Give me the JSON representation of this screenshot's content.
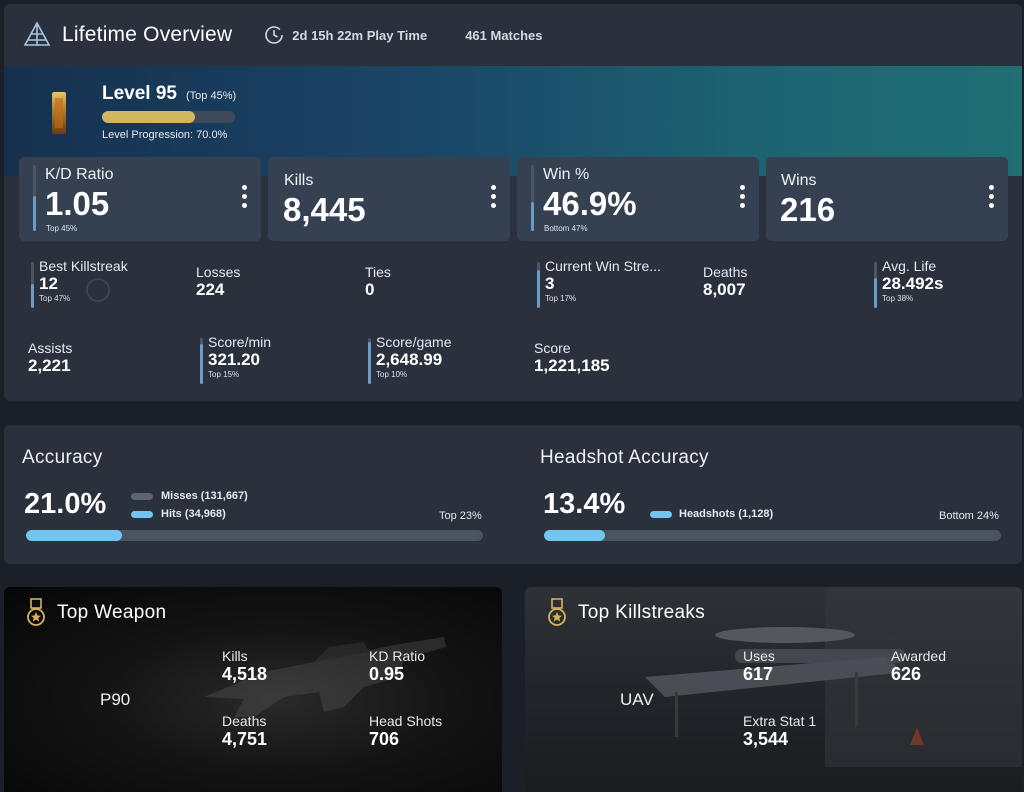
{
  "header": {
    "title": "Lifetime Overview",
    "play_time": "2d 15h 22m Play Time",
    "matches": "461 Matches"
  },
  "level": {
    "label": "Level 95",
    "top": "(Top 45%)",
    "progression_label": "Level Progression: 70.0%",
    "progression": 0.7
  },
  "big_cards": [
    {
      "label": "K/D Ratio",
      "value": "1.05",
      "sub": "Top 45%",
      "percentile": 0.55
    },
    {
      "label": "Kills",
      "value": "8,445",
      "sub": ""
    },
    {
      "label": "Win %",
      "value": "46.9%",
      "sub": "Bottom 47%",
      "percentile": 0.47
    },
    {
      "label": "Wins",
      "value": "216",
      "sub": ""
    }
  ],
  "stats": {
    "best_killstreak": {
      "label": "Best Killstreak",
      "value": "12",
      "sub": "Top 47%"
    },
    "losses": {
      "label": "Losses",
      "value": "224"
    },
    "ties": {
      "label": "Ties",
      "value": "0"
    },
    "current_win_streak": {
      "label": "Current Win Stre...",
      "value": "3",
      "sub": "Top 17%"
    },
    "deaths": {
      "label": "Deaths",
      "value": "8,007"
    },
    "avg_life": {
      "label": "Avg. Life",
      "value": "28.492s",
      "sub": "Top 38%"
    },
    "assists": {
      "label": "Assists",
      "value": "2,221"
    },
    "score_min": {
      "label": "Score/min",
      "value": "321.20",
      "sub": "Top 15%"
    },
    "score_game": {
      "label": "Score/game",
      "value": "2,648.99",
      "sub": "Top 10%"
    },
    "score": {
      "label": "Score",
      "value": "1,221,185"
    }
  },
  "accuracy": {
    "title": "Accuracy",
    "value": "21.0%",
    "fraction": 0.21,
    "legend_misses": "Misses (131,667)",
    "legend_hits": "Hits (34,968)",
    "rank": "Top 23%"
  },
  "headshot_accuracy": {
    "title": "Headshot Accuracy",
    "value": "13.4%",
    "fraction": 0.134,
    "legend_headshots": "Headshots (1,128)",
    "rank": "Bottom 24%"
  },
  "top_weapon": {
    "title": "Top Weapon",
    "name": "P90",
    "kills_label": "Kills",
    "kills": "4,518",
    "kd_label": "KD Ratio",
    "kd": "0.95",
    "deaths_label": "Deaths",
    "deaths": "4,751",
    "headshots_label": "Head Shots",
    "headshots": "706"
  },
  "top_killstreaks": {
    "title": "Top Killstreaks",
    "name": "UAV",
    "uses_label": "Uses",
    "uses": "617",
    "awarded_label": "Awarded",
    "awarded": "626",
    "extra_label": "Extra Stat 1",
    "extra": "3,544"
  },
  "colors": {
    "accent_blue": "#74c4f2",
    "level_gold": "#d2b660",
    "panel": "#2a303c",
    "card": "#354051"
  },
  "icons": [
    "pyramid-logo-icon",
    "clock-icon",
    "rank-badge-icon",
    "more-vert-icon",
    "medal-icon"
  ]
}
